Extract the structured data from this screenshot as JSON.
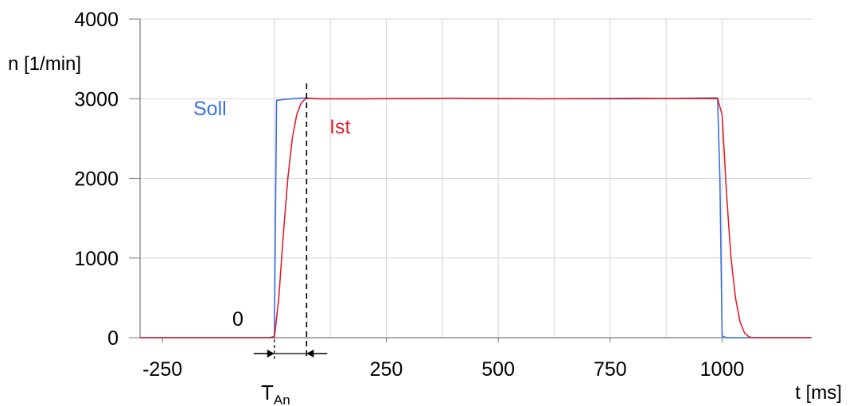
{
  "chart_data": {
    "type": "line",
    "xlabel": "t [ms]",
    "ylabel": "n [1/min]",
    "xlim": [
      -300,
      1200
    ],
    "ylim": [
      0,
      4000
    ],
    "x_ticks": [
      -250,
      250,
      500,
      750,
      1000
    ],
    "y_ticks": [
      0,
      1000,
      2000,
      3000,
      4000
    ],
    "x_tick_labels": [
      "-250",
      "250",
      "500",
      "750",
      "1000"
    ],
    "y_tick_labels": [
      "0",
      "1000",
      "2000",
      "3000",
      "4000"
    ],
    "grid": true,
    "series": [
      {
        "name": "Soll",
        "color": "#3b6fe0",
        "x": [
          -300,
          -180,
          -10,
          0,
          5,
          20,
          40,
          70,
          100,
          200,
          400,
          600,
          800,
          990,
          995,
          1000,
          1010,
          1200
        ],
        "y": [
          0,
          0,
          0,
          20,
          2980,
          2990,
          3000,
          3010,
          3000,
          3000,
          3005,
          3000,
          3000,
          3010,
          2000,
          20,
          0,
          0
        ]
      },
      {
        "name": "Ist",
        "color": "#e0202a",
        "x": [
          -300,
          -180,
          -20,
          0,
          10,
          20,
          30,
          40,
          50,
          60,
          70,
          80,
          100,
          200,
          400,
          600,
          800,
          990,
          1000,
          1010,
          1020,
          1030,
          1040,
          1050,
          1060,
          1070,
          1200
        ],
        "y": [
          0,
          0,
          0,
          0,
          500,
          1300,
          2000,
          2500,
          2800,
          2950,
          3000,
          3005,
          3000,
          3000,
          3005,
          3000,
          3005,
          3000,
          2800,
          1800,
          1000,
          500,
          200,
          60,
          10,
          0,
          0
        ]
      }
    ],
    "annotations": {
      "zero_label": "0",
      "t_an_base": "T",
      "t_an_sub": "An",
      "t_start": 0,
      "t_end": 72
    }
  }
}
